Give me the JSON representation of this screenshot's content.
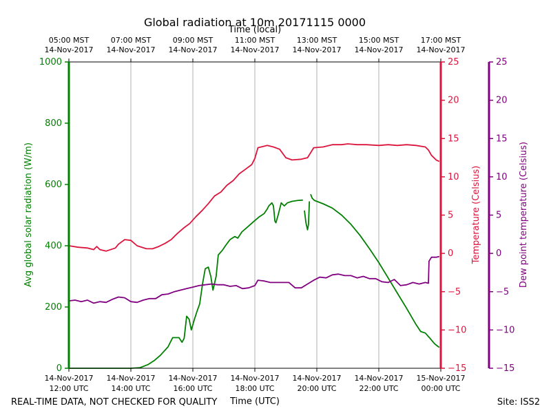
{
  "chart_data": {
    "type": "line",
    "title": "Global radiation at 10m 20171115 0000",
    "top_axis_label": "Time (local)",
    "xlabel": "Time (UTC)",
    "ylabel_left": "Avg global solar radiation (W/m)",
    "ylabel_right1": "Temperature (Celsius)",
    "ylabel_right2": "Dew point temperature (Celsius)",
    "footer_left": "REAL-TIME DATA, NOT CHECKED FOR QUALITY",
    "footer_right": "Site: ISS2",
    "x_range_utc_hours": [
      12,
      24
    ],
    "bottom_ticks": [
      {
        "hour": 12,
        "line1": "14-Nov-2017",
        "line2": "12:00 UTC"
      },
      {
        "hour": 14,
        "line1": "14-Nov-2017",
        "line2": "14:00 UTC"
      },
      {
        "hour": 16,
        "line1": "14-Nov-2017",
        "line2": "16:00 UTC"
      },
      {
        "hour": 18,
        "line1": "14-Nov-2017",
        "line2": "18:00 UTC"
      },
      {
        "hour": 20,
        "line1": "14-Nov-2017",
        "line2": "20:00 UTC"
      },
      {
        "hour": 22,
        "line1": "14-Nov-2017",
        "line2": "22:00 UTC"
      },
      {
        "hour": 24,
        "line1": "15-Nov-2017",
        "line2": "00:00 UTC"
      }
    ],
    "top_ticks": [
      {
        "hour": 12,
        "line1": "05:00 MST",
        "line2": "14-Nov-2017"
      },
      {
        "hour": 14,
        "line1": "07:00 MST",
        "line2": "14-Nov-2017"
      },
      {
        "hour": 16,
        "line1": "09:00 MST",
        "line2": "14-Nov-2017"
      },
      {
        "hour": 18,
        "line1": "11:00 MST",
        "line2": "14-Nov-2017"
      },
      {
        "hour": 20,
        "line1": "13:00 MST",
        "line2": "14-Nov-2017"
      },
      {
        "hour": 22,
        "line1": "15:00 MST",
        "line2": "14-Nov-2017"
      },
      {
        "hour": 24,
        "line1": "17:00 MST",
        "line2": "14-Nov-2017"
      }
    ],
    "left_axis": {
      "ylim": [
        0,
        1000
      ],
      "ticks": [
        0,
        200,
        400,
        600,
        800,
        1000
      ],
      "color": "#008000"
    },
    "right_axis1": {
      "ylim": [
        -15,
        25
      ],
      "ticks": [
        -15,
        -10,
        -5,
        0,
        5,
        10,
        15,
        20,
        25
      ],
      "color": "#dc143c"
    },
    "right_axis2": {
      "ylim": [
        -15,
        25
      ],
      "ticks": [
        -15,
        -10,
        -5,
        0,
        5,
        10,
        15,
        20,
        25
      ],
      "color": "#800080"
    },
    "series": [
      {
        "name": "Avg global solar radiation",
        "axis": "left",
        "color": "#008000",
        "points": [
          [
            12.0,
            0
          ],
          [
            13.0,
            0
          ],
          [
            14.0,
            0
          ],
          [
            14.3,
            2
          ],
          [
            14.55,
            12
          ],
          [
            14.75,
            25
          ],
          [
            14.95,
            42
          ],
          [
            15.2,
            70
          ],
          [
            15.35,
            100
          ],
          [
            15.55,
            100
          ],
          [
            15.65,
            85
          ],
          [
            15.72,
            98
          ],
          [
            15.8,
            170
          ],
          [
            15.88,
            160
          ],
          [
            15.95,
            125
          ],
          [
            16.05,
            160
          ],
          [
            16.15,
            190
          ],
          [
            16.22,
            210
          ],
          [
            16.32,
            280
          ],
          [
            16.4,
            325
          ],
          [
            16.5,
            330
          ],
          [
            16.58,
            300
          ],
          [
            16.65,
            255
          ],
          [
            16.75,
            300
          ],
          [
            16.82,
            370
          ],
          [
            16.95,
            385
          ],
          [
            17.05,
            400
          ],
          [
            17.2,
            420
          ],
          [
            17.35,
            430
          ],
          [
            17.45,
            425
          ],
          [
            17.58,
            445
          ],
          [
            17.75,
            460
          ],
          [
            17.95,
            478
          ],
          [
            18.15,
            495
          ],
          [
            18.3,
            505
          ],
          [
            18.4,
            520
          ],
          [
            18.45,
            530
          ],
          [
            18.55,
            540
          ],
          [
            18.6,
            530
          ],
          [
            18.65,
            480
          ],
          [
            18.68,
            475
          ],
          [
            18.75,
            500
          ],
          [
            18.85,
            540
          ],
          [
            18.95,
            530
          ],
          [
            19.05,
            540
          ],
          [
            19.2,
            545
          ],
          [
            19.4,
            548
          ],
          [
            19.55,
            549
          ],
          null,
          [
            19.6,
            515
          ],
          [
            19.65,
            475
          ],
          [
            19.7,
            452
          ],
          [
            19.73,
            470
          ],
          [
            19.76,
            545
          ],
          null,
          [
            19.8,
            568
          ],
          [
            19.85,
            555
          ],
          [
            19.92,
            548
          ],
          [
            20.0,
            545
          ],
          [
            20.2,
            537
          ],
          [
            20.5,
            523
          ],
          [
            20.8,
            500
          ],
          [
            21.1,
            470
          ],
          [
            21.4,
            433
          ],
          [
            21.7,
            390
          ],
          [
            22.0,
            345
          ],
          [
            22.3,
            295
          ],
          [
            22.6,
            245
          ],
          [
            22.9,
            195
          ],
          [
            23.2,
            143
          ],
          [
            23.35,
            120
          ],
          [
            23.5,
            115
          ],
          [
            23.65,
            98
          ],
          [
            23.8,
            80
          ],
          [
            23.9,
            72
          ],
          [
            23.95,
            68
          ]
        ]
      },
      {
        "name": "Temperature",
        "axis": "right1",
        "color": "#dc143c",
        "points": [
          [
            12.0,
            1.0
          ],
          [
            12.3,
            0.8
          ],
          [
            12.6,
            0.7
          ],
          [
            12.8,
            0.5
          ],
          [
            12.9,
            0.9
          ],
          [
            13.0,
            0.5
          ],
          [
            13.2,
            0.3
          ],
          [
            13.5,
            0.7
          ],
          [
            13.6,
            1.2
          ],
          [
            13.8,
            1.8
          ],
          [
            14.0,
            1.7
          ],
          [
            14.2,
            1.0
          ],
          [
            14.5,
            0.6
          ],
          [
            14.7,
            0.6
          ],
          [
            14.9,
            0.9
          ],
          [
            15.1,
            1.3
          ],
          [
            15.3,
            1.8
          ],
          [
            15.5,
            2.6
          ],
          [
            15.7,
            3.3
          ],
          [
            15.9,
            3.9
          ],
          [
            16.1,
            4.8
          ],
          [
            16.3,
            5.6
          ],
          [
            16.5,
            6.5
          ],
          [
            16.7,
            7.5
          ],
          [
            16.9,
            8.0
          ],
          [
            17.1,
            8.9
          ],
          [
            17.3,
            9.5
          ],
          [
            17.5,
            10.4
          ],
          [
            17.7,
            11.0
          ],
          [
            17.9,
            11.6
          ],
          [
            18.0,
            12.4
          ],
          [
            18.1,
            13.8
          ],
          [
            18.2,
            13.9
          ],
          [
            18.4,
            14.1
          ],
          [
            18.6,
            13.9
          ],
          [
            18.8,
            13.6
          ],
          [
            19.0,
            12.5
          ],
          [
            19.2,
            12.2
          ],
          [
            19.5,
            12.3
          ],
          [
            19.7,
            12.5
          ],
          [
            19.9,
            13.8
          ],
          [
            20.2,
            13.9
          ],
          [
            20.5,
            14.2
          ],
          [
            20.8,
            14.2
          ],
          [
            21.0,
            14.3
          ],
          [
            21.3,
            14.2
          ],
          [
            21.6,
            14.2
          ],
          [
            22.0,
            14.1
          ],
          [
            22.3,
            14.2
          ],
          [
            22.6,
            14.1
          ],
          [
            22.9,
            14.2
          ],
          [
            23.2,
            14.1
          ],
          [
            23.5,
            13.9
          ],
          [
            23.6,
            13.5
          ],
          [
            23.7,
            12.8
          ],
          [
            23.85,
            12.2
          ],
          [
            23.95,
            12.0
          ]
        ]
      },
      {
        "name": "Dew point temperature",
        "axis": "right2",
        "color": "#800080",
        "points": [
          [
            12.0,
            -6.2
          ],
          [
            12.2,
            -6.1
          ],
          [
            12.4,
            -6.3
          ],
          [
            12.6,
            -6.1
          ],
          [
            12.8,
            -6.5
          ],
          [
            13.0,
            -6.3
          ],
          [
            13.2,
            -6.4
          ],
          [
            13.4,
            -6.0
          ],
          [
            13.6,
            -5.7
          ],
          [
            13.8,
            -5.8
          ],
          [
            14.0,
            -6.3
          ],
          [
            14.2,
            -6.4
          ],
          [
            14.4,
            -6.1
          ],
          [
            14.6,
            -5.9
          ],
          [
            14.8,
            -5.9
          ],
          [
            15.0,
            -5.4
          ],
          [
            15.2,
            -5.3
          ],
          [
            15.4,
            -5.0
          ],
          [
            15.6,
            -4.8
          ],
          [
            15.8,
            -4.6
          ],
          [
            16.0,
            -4.4
          ],
          [
            16.2,
            -4.2
          ],
          [
            16.4,
            -4.1
          ],
          [
            16.6,
            -4.0
          ],
          [
            16.8,
            -4.1
          ],
          [
            17.0,
            -4.1
          ],
          [
            17.2,
            -4.3
          ],
          [
            17.4,
            -4.2
          ],
          [
            17.6,
            -4.6
          ],
          [
            17.8,
            -4.5
          ],
          [
            18.0,
            -4.2
          ],
          [
            18.1,
            -3.5
          ],
          [
            18.3,
            -3.6
          ],
          [
            18.5,
            -3.8
          ],
          [
            18.7,
            -3.8
          ],
          [
            18.9,
            -3.8
          ],
          [
            19.1,
            -3.8
          ],
          [
            19.3,
            -4.5
          ],
          [
            19.5,
            -4.5
          ],
          [
            19.7,
            -4.0
          ],
          [
            19.9,
            -3.5
          ],
          [
            20.1,
            -3.1
          ],
          [
            20.3,
            -3.2
          ],
          [
            20.5,
            -2.8
          ],
          [
            20.7,
            -2.7
          ],
          [
            20.9,
            -2.9
          ],
          [
            21.1,
            -2.9
          ],
          [
            21.3,
            -3.2
          ],
          [
            21.5,
            -3.0
          ],
          [
            21.7,
            -3.3
          ],
          [
            21.9,
            -3.3
          ],
          [
            22.1,
            -3.7
          ],
          [
            22.3,
            -3.8
          ],
          [
            22.5,
            -3.4
          ],
          [
            22.7,
            -4.2
          ],
          [
            22.9,
            -4.1
          ],
          [
            23.1,
            -3.8
          ],
          [
            23.3,
            -4.0
          ],
          [
            23.5,
            -3.8
          ],
          [
            23.6,
            -3.9
          ],
          [
            23.62,
            -1.0
          ],
          [
            23.7,
            -0.5
          ],
          [
            23.85,
            -0.5
          ],
          [
            23.95,
            -0.4
          ]
        ]
      }
    ]
  }
}
